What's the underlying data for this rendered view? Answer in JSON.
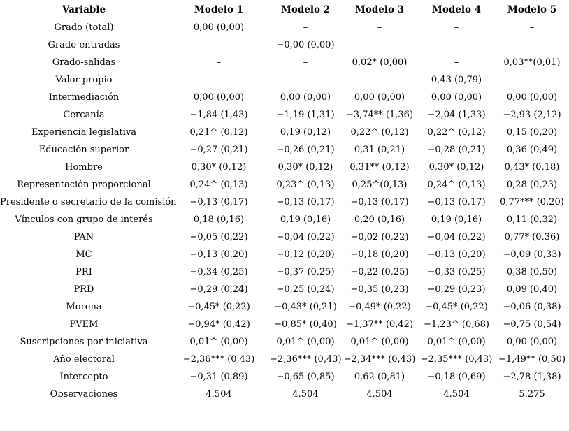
{
  "colors": {
    "text": "#000000",
    "background": "#ffffff"
  },
  "table": {
    "columns": [
      "Variable",
      "Modelo 1",
      "Modelo 2",
      "Modelo 3",
      "Modelo 4",
      "Modelo 5"
    ],
    "empty_cell_symbol": "–",
    "significance_symbols": [
      "^",
      "*",
      "**",
      "***"
    ],
    "rows": [
      {
        "variable": "Grado (total)",
        "values": [
          "0,00 (0,00)",
          "–",
          "–",
          "–",
          "–"
        ]
      },
      {
        "variable": "Grado-entradas",
        "values": [
          "–",
          "−0,00 (0,00)",
          "–",
          "–",
          "–"
        ]
      },
      {
        "variable": "Grado-salidas",
        "values": [
          "–",
          "–",
          "0,02* (0,00)",
          "–",
          "0,03**(0,01)"
        ]
      },
      {
        "variable": "Valor propio",
        "values": [
          "–",
          "–",
          "–",
          "0,43 (0,79)",
          "–"
        ]
      },
      {
        "variable": "Intermediación",
        "values": [
          "0,00 (0,00)",
          "0,00 (0,00)",
          "0,00 (0,00)",
          "0,00 (0,00)",
          "0,00 (0,00)"
        ]
      },
      {
        "variable": "Cercanía",
        "values": [
          "−1,84 (1,43)",
          "−1,19 (1,31)",
          "−3,74** (1,36)",
          "−2,04 (1,33)",
          "−2,93 (2,12)"
        ]
      },
      {
        "variable": "Experiencia legislativa",
        "values": [
          "0,21^ (0,12)",
          "0,19 (0,12)",
          "0,22^ (0,12)",
          "0,22^ (0,12)",
          "0,15 (0,20)"
        ]
      },
      {
        "variable": "Educación superior",
        "values": [
          "−0,27 (0,21)",
          "−0,26 (0,21)",
          "0,31 (0,21)",
          "−0,28 (0,21)",
          "0,36 (0,49)"
        ]
      },
      {
        "variable": "Hombre",
        "values": [
          "0,30* (0,12)",
          "0,30* (0,12)",
          "0,31** (0,12)",
          "0,30* (0,12)",
          "0,43* (0,18)"
        ]
      },
      {
        "variable": "Representación proporcional",
        "values": [
          "0,24^ (0,13)",
          "0,23^ (0,13)",
          "0,25^(0,13)",
          "0,24^ (0,13)",
          "0,28 (0,23)"
        ]
      },
      {
        "variable": "Presidente o secretario de la comisión",
        "values": [
          "−0,13 (0,17)",
          "−0,13 (0,17)",
          "−0,13 (0,17)",
          "−0,13 (0,17)",
          "0,77*** (0,20)"
        ]
      },
      {
        "variable": "Vínculos con grupo de interés",
        "values": [
          "0,18 (0,16)",
          "0,19 (0,16)",
          "0,20 (0,16)",
          "0,19 (0,16)",
          "0,11 (0,32)"
        ]
      },
      {
        "variable": "PAN",
        "values": [
          "−0,05 (0,22)",
          "−0,04 (0,22)",
          "−0,02 (0,22)",
          "−0,04 (0,22)",
          "0,77* (0,36)"
        ]
      },
      {
        "variable": "MC",
        "values": [
          "−0,13 (0,20)",
          "−0,12 (0,20)",
          "−0,18 (0,20)",
          "−0,13 (0,20)",
          "−0,09 (0,33)"
        ]
      },
      {
        "variable": "PRI",
        "values": [
          "−0,34 (0,25)",
          "−0,37 (0,25)",
          "−0,22 (0,25)",
          "−0,33 (0,25)",
          "0,38 (0,50)"
        ]
      },
      {
        "variable": "PRD",
        "values": [
          "−0,29 (0,24)",
          "−0,25 (0,24)",
          "−0,35 (0,23)",
          "−0,29 (0,23)",
          "0,09 (0,40)"
        ]
      },
      {
        "variable": "Morena",
        "values": [
          "−0,45* (0,22)",
          "−0,43* (0,21)",
          "−0,49* (0,22)",
          "−0,45* (0,22)",
          "−0,06 (0,38)"
        ]
      },
      {
        "variable": "PVEM",
        "values": [
          "−0,94* (0,42)",
          "−0,85* (0,40)",
          "−1,37** (0,42)",
          "−1,23^ (0,68)",
          "−0,75 (0,54)"
        ]
      },
      {
        "variable": "Suscripciones por iniciativa",
        "values": [
          "0,01^ (0,00)",
          "0,01^ (0,00)",
          "0,01^ (0,00)",
          "0,01^ (0,00)",
          "0,00 (0,00)"
        ]
      },
      {
        "variable": "Año electoral",
        "values": [
          "−2,36*** (0,43)",
          "−2,36*** (0,43)",
          "−2,34*** (0,43)",
          "−2,35*** (0,43)",
          "−1,49** (0,50)"
        ]
      },
      {
        "variable": "Intercepto",
        "values": [
          "−0,31 (0,89)",
          "−0,65 (0,85)",
          "0,62 (0,81)",
          "−0,18 (0,69)",
          "−2,78 (1,38)"
        ]
      },
      {
        "variable": "Observaciones",
        "values": [
          "4.504",
          "4.504",
          "4.504",
          "4.504",
          "5.275"
        ]
      }
    ]
  }
}
